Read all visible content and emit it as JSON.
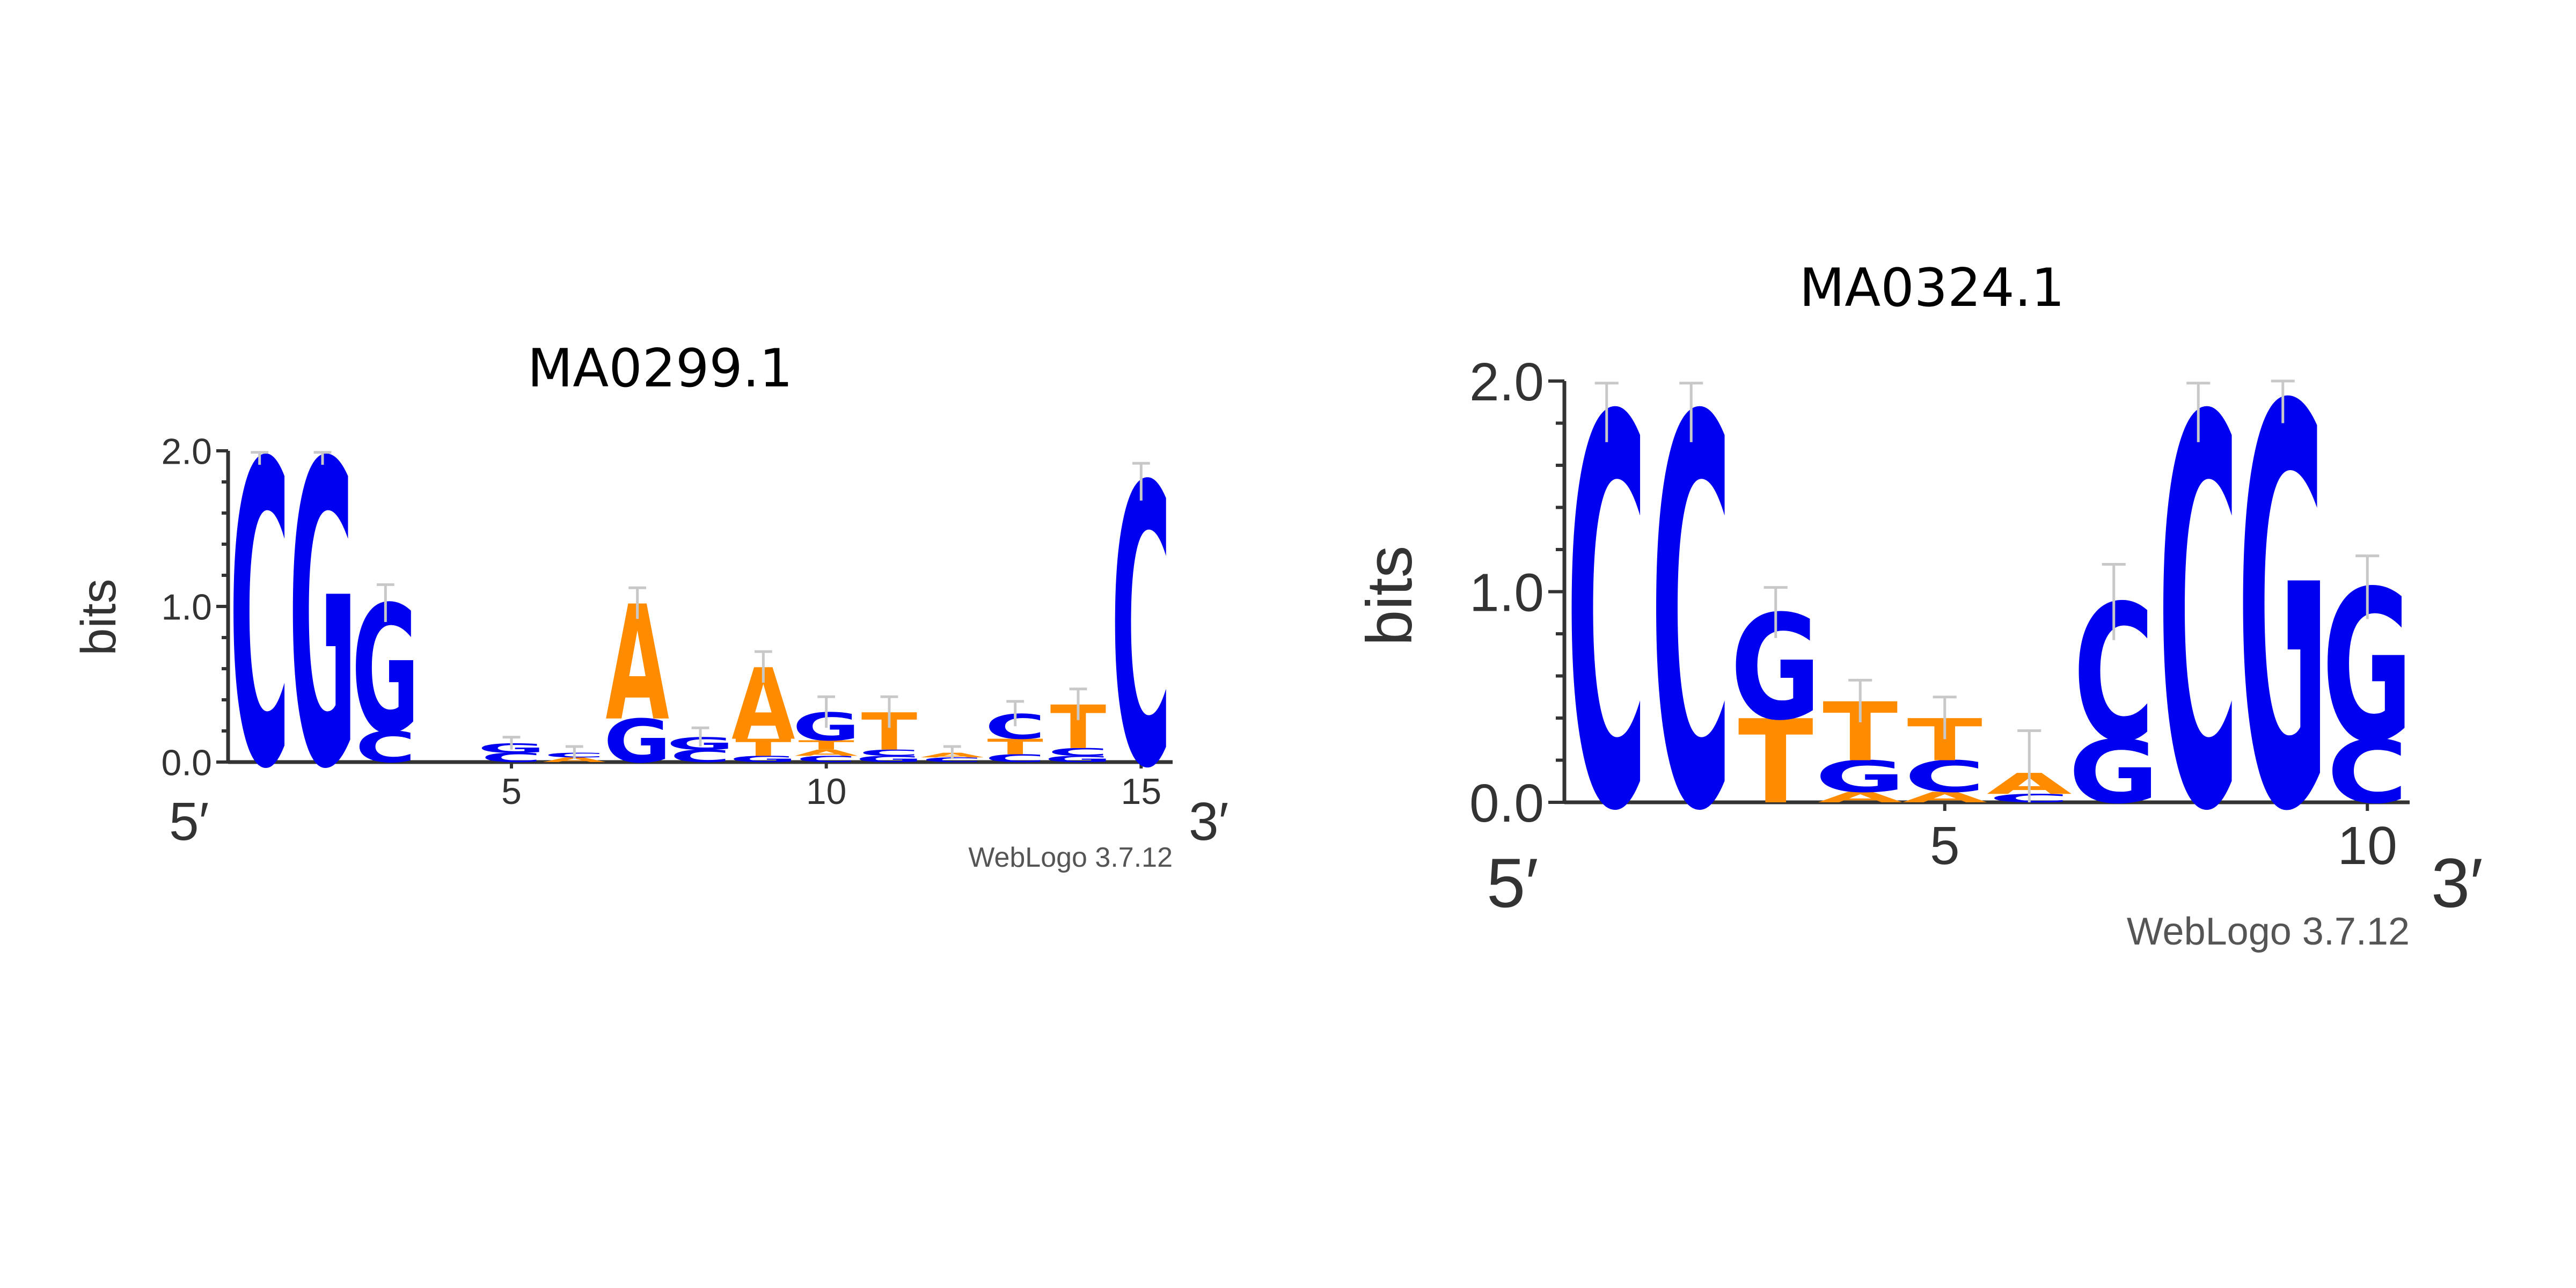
{
  "colors": {
    "A": "#ff8c00",
    "T": "#ff8c00",
    "C": "#0000f0",
    "G": "#0000f0"
  },
  "chart_data": [
    {
      "type": "sequence-logo",
      "title": "MA0299.1",
      "ylabel": "bits",
      "ylim": [
        0,
        2
      ],
      "yticks": [
        "0.0",
        "1.0",
        "2.0"
      ],
      "xticks": [
        5,
        10,
        15
      ],
      "five_prime": "5′",
      "three_prime": "3′",
      "footer": "WebLogo 3.7.12",
      "positions": [
        {
          "pos": 1,
          "letters": [
            {
              "base": "C",
              "bits": 1.95
            }
          ],
          "error": 0.04
        },
        {
          "pos": 2,
          "letters": [
            {
              "base": "G",
              "bits": 1.95
            }
          ],
          "error": 0.04
        },
        {
          "pos": 3,
          "letters": [
            {
              "base": "C",
              "bits": 0.2
            },
            {
              "base": "G",
              "bits": 0.82
            }
          ],
          "error": 0.12
        },
        {
          "pos": 4,
          "letters": [],
          "error": 0
        },
        {
          "pos": 5,
          "letters": [
            {
              "base": "C",
              "bits": 0.06
            },
            {
              "base": "G",
              "bits": 0.06
            }
          ],
          "error": 0.04
        },
        {
          "pos": 6,
          "letters": [
            {
              "base": "A",
              "bits": 0.03
            },
            {
              "base": "C",
              "bits": 0.03
            }
          ],
          "error": 0.04
        },
        {
          "pos": 7,
          "letters": [
            {
              "base": "G",
              "bits": 0.28
            },
            {
              "base": "A",
              "bits": 0.74
            }
          ],
          "error": 0.1
        },
        {
          "pos": 8,
          "letters": [
            {
              "base": "C",
              "bits": 0.08
            },
            {
              "base": "G",
              "bits": 0.08
            }
          ],
          "error": 0.06
        },
        {
          "pos": 9,
          "letters": [
            {
              "base": "G",
              "bits": 0.04
            },
            {
              "base": "T",
              "bits": 0.11
            },
            {
              "base": "A",
              "bits": 0.46
            }
          ],
          "error": 0.1
        },
        {
          "pos": 10,
          "letters": [
            {
              "base": "C",
              "bits": 0.04
            },
            {
              "base": "A",
              "bits": 0.04
            },
            {
              "base": "T",
              "bits": 0.06
            },
            {
              "base": "G",
              "bits": 0.18
            }
          ],
          "error": 0.1
        },
        {
          "pos": 11,
          "letters": [
            {
              "base": "G",
              "bits": 0.04
            },
            {
              "base": "C",
              "bits": 0.04
            },
            {
              "base": "T",
              "bits": 0.24
            }
          ],
          "error": 0.1
        },
        {
          "pos": 12,
          "letters": [
            {
              "base": "C",
              "bits": 0.03
            },
            {
              "base": "A",
              "bits": 0.03
            }
          ],
          "error": 0.04
        },
        {
          "pos": 13,
          "letters": [
            {
              "base": "C",
              "bits": 0.05
            },
            {
              "base": "T",
              "bits": 0.1
            },
            {
              "base": "C",
              "bits": 0.16
            }
          ],
          "error": 0.08
        },
        {
          "pos": 14,
          "letters": [
            {
              "base": "G",
              "bits": 0.04
            },
            {
              "base": "C",
              "bits": 0.05
            },
            {
              "base": "T",
              "bits": 0.28
            }
          ],
          "error": 0.1
        },
        {
          "pos": 15,
          "letters": [
            {
              "base": "C",
              "bits": 1.8
            }
          ],
          "error": 0.12
        }
      ]
    },
    {
      "type": "sequence-logo",
      "title": "MA0324.1",
      "ylabel": "bits",
      "ylim": [
        0,
        2
      ],
      "yticks": [
        "0.0",
        "1.0",
        "2.0"
      ],
      "xticks": [
        5,
        10
      ],
      "five_prime": "5′",
      "three_prime": "3′",
      "footer": "WebLogo 3.7.12",
      "positions": [
        {
          "pos": 1,
          "letters": [
            {
              "base": "C",
              "bits": 1.85
            }
          ],
          "error": 0.14
        },
        {
          "pos": 2,
          "letters": [
            {
              "base": "C",
              "bits": 1.85
            }
          ],
          "error": 0.14
        },
        {
          "pos": 3,
          "letters": [
            {
              "base": "T",
              "bits": 0.4
            },
            {
              "base": "G",
              "bits": 0.5
            }
          ],
          "error": 0.12
        },
        {
          "pos": 4,
          "letters": [
            {
              "base": "A",
              "bits": 0.05
            },
            {
              "base": "G",
              "bits": 0.15
            },
            {
              "base": "T",
              "bits": 0.28
            }
          ],
          "error": 0.1
        },
        {
          "pos": 5,
          "letters": [
            {
              "base": "A",
              "bits": 0.05
            },
            {
              "base": "C",
              "bits": 0.15
            },
            {
              "base": "T",
              "bits": 0.2
            }
          ],
          "error": 0.1
        },
        {
          "pos": 6,
          "letters": [
            {
              "base": "C",
              "bits": 0.04
            },
            {
              "base": "A",
              "bits": 0.1
            }
          ],
          "error": 0.2
        },
        {
          "pos": 7,
          "letters": [
            {
              "base": "G",
              "bits": 0.3
            },
            {
              "base": "C",
              "bits": 0.65
            }
          ],
          "error": 0.18
        },
        {
          "pos": 8,
          "letters": [
            {
              "base": "C",
              "bits": 1.85
            }
          ],
          "error": 0.14
        },
        {
          "pos": 9,
          "letters": [
            {
              "base": "G",
              "bits": 1.9
            }
          ],
          "error": 0.1
        },
        {
          "pos": 10,
          "letters": [
            {
              "base": "C",
              "bits": 0.3
            },
            {
              "base": "G",
              "bits": 0.72
            }
          ],
          "error": 0.15
        }
      ]
    }
  ]
}
